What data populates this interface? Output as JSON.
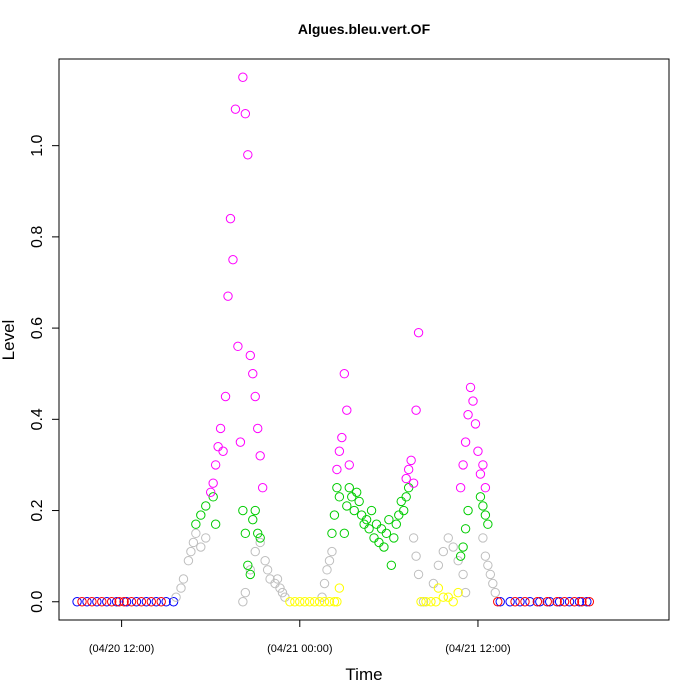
{
  "chart_data": {
    "type": "scatter",
    "title": "Algues.bleu.vert.OF",
    "xlabel": "Time",
    "ylabel": "Level",
    "xlim": [
      "04/20 07:47",
      "04/22 00:52"
    ],
    "ylim": [
      -0.04,
      1.19
    ],
    "grid": false,
    "legend": "none",
    "x_ticks": [
      {
        "value": "04/20 12:00",
        "label": "(04/20 12:00)"
      },
      {
        "value": "04/21 00:00",
        "label": "(04/21 00:00)"
      },
      {
        "value": "04/21 12:00",
        "label": "(04/21 12:00)"
      }
    ],
    "y_ticks": [
      {
        "value": 0.0,
        "label": "0.0"
      },
      {
        "value": 0.2,
        "label": "0.2"
      },
      {
        "value": 0.4,
        "label": "0.4"
      },
      {
        "value": 0.6,
        "label": "0.6"
      },
      {
        "value": 0.8,
        "label": "0.8"
      },
      {
        "value": 1.0,
        "label": "1.0"
      }
    ],
    "marker": "open-circle",
    "series": [
      {
        "color": "#0000ff",
        "points": [
          [
            "04/20 09:00",
            0
          ],
          [
            "04/20 09:40",
            0
          ],
          [
            "04/20 10:20",
            0
          ],
          [
            "04/20 11:00",
            0
          ],
          [
            "04/20 11:40",
            0
          ],
          [
            "04/20 12:20",
            0
          ],
          [
            "04/20 13:00",
            0
          ],
          [
            "04/20 13:40",
            0
          ],
          [
            "04/20 14:20",
            0
          ],
          [
            "04/20 15:00",
            0
          ],
          [
            "04/20 15:30",
            0
          ],
          [
            "04/21 13:30",
            0
          ],
          [
            "04/21 14:10",
            0
          ],
          [
            "04/21 14:50",
            0
          ],
          [
            "04/21 15:30",
            0
          ],
          [
            "04/21 16:10",
            0
          ],
          [
            "04/21 16:50",
            0
          ],
          [
            "04/21 17:30",
            0
          ],
          [
            "04/21 18:10",
            0
          ],
          [
            "04/21 18:50",
            0
          ],
          [
            "04/21 19:20",
            0
          ]
        ]
      },
      {
        "color": "#ff0000",
        "points": [
          [
            "04/20 09:20",
            0
          ],
          [
            "04/20 10:00",
            0
          ],
          [
            "04/20 10:40",
            0
          ],
          [
            "04/20 11:20",
            0
          ],
          [
            "04/20 11:50",
            0
          ],
          [
            "04/20 12:10",
            0
          ],
          [
            "04/20 12:40",
            0
          ],
          [
            "04/20 13:20",
            0
          ],
          [
            "04/20 14:00",
            0
          ],
          [
            "04/20 14:40",
            0
          ],
          [
            "04/21 13:20",
            0
          ],
          [
            "04/21 14:30",
            0
          ],
          [
            "04/21 15:10",
            0
          ],
          [
            "04/21 16:00",
            0
          ],
          [
            "04/21 16:40",
            0
          ],
          [
            "04/21 17:20",
            0
          ],
          [
            "04/21 17:50",
            0
          ],
          [
            "04/21 18:30",
            0
          ],
          [
            "04/21 19:00",
            0
          ],
          [
            "04/21 19:30",
            0
          ]
        ]
      },
      {
        "color": "#bebebe",
        "points": [
          [
            "04/20 15:40",
            0.01
          ],
          [
            "04/20 16:00",
            0.03
          ],
          [
            "04/20 16:10",
            0.05
          ],
          [
            "04/20 16:30",
            0.09
          ],
          [
            "04/20 16:40",
            0.11
          ],
          [
            "04/20 16:50",
            0.13
          ],
          [
            "04/20 17:00",
            0.15
          ],
          [
            "04/20 17:20",
            0.12
          ],
          [
            "04/20 17:40",
            0.14
          ],
          [
            "04/20 20:10",
            0.0
          ],
          [
            "04/20 20:20",
            0.02
          ],
          [
            "04/20 20:40",
            0.07
          ],
          [
            "04/20 21:00",
            0.11
          ],
          [
            "04/20 21:20",
            0.13
          ],
          [
            "04/20 21:40",
            0.09
          ],
          [
            "04/20 21:50",
            0.07
          ],
          [
            "04/20 22:00",
            0.05
          ],
          [
            "04/20 22:20",
            0.04
          ],
          [
            "04/20 22:30",
            0.05
          ],
          [
            "04/20 22:40",
            0.03
          ],
          [
            "04/20 22:50",
            0.02
          ],
          [
            "04/20 23:00",
            0.01
          ],
          [
            "04/21 01:30",
            0.01
          ],
          [
            "04/21 01:40",
            0.04
          ],
          [
            "04/21 01:50",
            0.07
          ],
          [
            "04/21 02:00",
            0.09
          ],
          [
            "04/21 02:10",
            0.11
          ],
          [
            "04/21 07:40",
            0.14
          ],
          [
            "04/21 07:50",
            0.1
          ],
          [
            "04/21 08:00",
            0.06
          ],
          [
            "04/21 08:20",
            0.0
          ],
          [
            "04/21 09:00",
            0.04
          ],
          [
            "04/21 09:20",
            0.08
          ],
          [
            "04/21 09:40",
            0.11
          ],
          [
            "04/21 10:00",
            0.14
          ],
          [
            "04/21 10:20",
            0.12
          ],
          [
            "04/21 10:40",
            0.09
          ],
          [
            "04/21 11:00",
            0.06
          ],
          [
            "04/21 11:10",
            0.02
          ],
          [
            "04/21 12:20",
            0.14
          ],
          [
            "04/21 12:30",
            0.1
          ],
          [
            "04/21 12:40",
            0.08
          ],
          [
            "04/21 12:50",
            0.06
          ],
          [
            "04/21 13:00",
            0.04
          ],
          [
            "04/21 13:10",
            0.02
          ]
        ]
      },
      {
        "color": "#00cc00",
        "points": [
          [
            "04/20 17:00",
            0.17
          ],
          [
            "04/20 17:20",
            0.19
          ],
          [
            "04/20 17:40",
            0.21
          ],
          [
            "04/20 18:10",
            0.23
          ],
          [
            "04/20 18:20",
            0.17
          ],
          [
            "04/20 20:10",
            0.2
          ],
          [
            "04/20 20:20",
            0.15
          ],
          [
            "04/20 20:30",
            0.08
          ],
          [
            "04/20 20:40",
            0.06
          ],
          [
            "04/20 20:50",
            0.18
          ],
          [
            "04/20 21:00",
            0.2
          ],
          [
            "04/20 21:10",
            0.15
          ],
          [
            "04/20 21:20",
            0.14
          ],
          [
            "04/21 02:10",
            0.15
          ],
          [
            "04/21 02:20",
            0.19
          ],
          [
            "04/21 02:30",
            0.25
          ],
          [
            "04/21 02:40",
            0.23
          ],
          [
            "04/21 03:00",
            0.15
          ],
          [
            "04/21 03:10",
            0.21
          ],
          [
            "04/21 03:20",
            0.25
          ],
          [
            "04/21 03:30",
            0.23
          ],
          [
            "04/21 03:40",
            0.2
          ],
          [
            "04/21 03:50",
            0.24
          ],
          [
            "04/21 04:00",
            0.22
          ],
          [
            "04/21 04:10",
            0.19
          ],
          [
            "04/21 04:20",
            0.17
          ],
          [
            "04/21 04:30",
            0.18
          ],
          [
            "04/21 04:40",
            0.16
          ],
          [
            "04/21 04:50",
            0.2
          ],
          [
            "04/21 05:00",
            0.14
          ],
          [
            "04/21 05:10",
            0.17
          ],
          [
            "04/21 05:20",
            0.13
          ],
          [
            "04/21 05:30",
            0.16
          ],
          [
            "04/21 05:40",
            0.12
          ],
          [
            "04/21 05:50",
            0.15
          ],
          [
            "04/21 06:00",
            0.18
          ],
          [
            "04/21 06:10",
            0.08
          ],
          [
            "04/21 06:20",
            0.14
          ],
          [
            "04/21 06:30",
            0.17
          ],
          [
            "04/21 06:40",
            0.19
          ],
          [
            "04/21 06:50",
            0.22
          ],
          [
            "04/21 07:00",
            0.2
          ],
          [
            "04/21 07:10",
            0.23
          ],
          [
            "04/21 07:20",
            0.25
          ],
          [
            "04/21 10:50",
            0.1
          ],
          [
            "04/21 11:00",
            0.12
          ],
          [
            "04/21 11:10",
            0.16
          ],
          [
            "04/21 11:20",
            0.2
          ],
          [
            "04/21 12:10",
            0.23
          ],
          [
            "04/21 12:20",
            0.21
          ],
          [
            "04/21 12:30",
            0.19
          ],
          [
            "04/21 12:40",
            0.17
          ]
        ]
      },
      {
        "color": "#ff00ff",
        "points": [
          [
            "04/20 18:00",
            0.24
          ],
          [
            "04/20 18:10",
            0.26
          ],
          [
            "04/20 18:20",
            0.3
          ],
          [
            "04/20 18:30",
            0.34
          ],
          [
            "04/20 18:40",
            0.38
          ],
          [
            "04/20 18:50",
            0.33
          ],
          [
            "04/20 19:00",
            0.45
          ],
          [
            "04/20 19:10",
            0.67
          ],
          [
            "04/20 19:20",
            0.84
          ],
          [
            "04/20 19:30",
            0.75
          ],
          [
            "04/20 19:40",
            1.08
          ],
          [
            "04/20 19:50",
            0.56
          ],
          [
            "04/20 20:00",
            0.35
          ],
          [
            "04/20 20:10",
            1.15
          ],
          [
            "04/20 20:20",
            1.07
          ],
          [
            "04/20 20:30",
            0.98
          ],
          [
            "04/20 20:40",
            0.54
          ],
          [
            "04/20 20:50",
            0.5
          ],
          [
            "04/20 21:00",
            0.45
          ],
          [
            "04/20 21:10",
            0.38
          ],
          [
            "04/20 21:20",
            0.32
          ],
          [
            "04/20 21:30",
            0.25
          ],
          [
            "04/21 02:30",
            0.29
          ],
          [
            "04/21 02:40",
            0.33
          ],
          [
            "04/21 02:50",
            0.36
          ],
          [
            "04/21 03:00",
            0.5
          ],
          [
            "04/21 03:10",
            0.42
          ],
          [
            "04/21 03:20",
            0.3
          ],
          [
            "04/21 07:10",
            0.27
          ],
          [
            "04/21 07:20",
            0.29
          ],
          [
            "04/21 07:30",
            0.31
          ],
          [
            "04/21 07:40",
            0.26
          ],
          [
            "04/21 07:50",
            0.42
          ],
          [
            "04/21 08:00",
            0.59
          ],
          [
            "04/21 10:50",
            0.25
          ],
          [
            "04/21 11:00",
            0.3
          ],
          [
            "04/21 11:10",
            0.35
          ],
          [
            "04/21 11:20",
            0.41
          ],
          [
            "04/21 11:30",
            0.47
          ],
          [
            "04/21 11:40",
            0.44
          ],
          [
            "04/21 11:50",
            0.39
          ],
          [
            "04/21 12:00",
            0.33
          ],
          [
            "04/21 12:10",
            0.28
          ],
          [
            "04/21 12:20",
            0.3
          ],
          [
            "04/21 12:30",
            0.25
          ]
        ]
      },
      {
        "color": "#ffff00",
        "points": [
          [
            "04/20 23:20",
            0
          ],
          [
            "04/20 23:40",
            0
          ],
          [
            "04/21 00:00",
            0
          ],
          [
            "04/21 00:20",
            0
          ],
          [
            "04/21 00:40",
            0
          ],
          [
            "04/21 01:00",
            0
          ],
          [
            "04/21 01:20",
            0
          ],
          [
            "04/21 01:40",
            0
          ],
          [
            "04/21 02:00",
            0
          ],
          [
            "04/21 02:20",
            0
          ],
          [
            "04/21 02:30",
            0
          ],
          [
            "04/21 02:40",
            0.03
          ],
          [
            "04/21 08:10",
            0
          ],
          [
            "04/21 08:30",
            0
          ],
          [
            "04/21 08:50",
            0
          ],
          [
            "04/21 09:10",
            0
          ],
          [
            "04/21 09:20",
            0.03
          ],
          [
            "04/21 09:40",
            0.01
          ],
          [
            "04/21 10:00",
            0.01
          ],
          [
            "04/21 10:20",
            0
          ],
          [
            "04/21 10:40",
            0.02
          ]
        ]
      }
    ]
  }
}
